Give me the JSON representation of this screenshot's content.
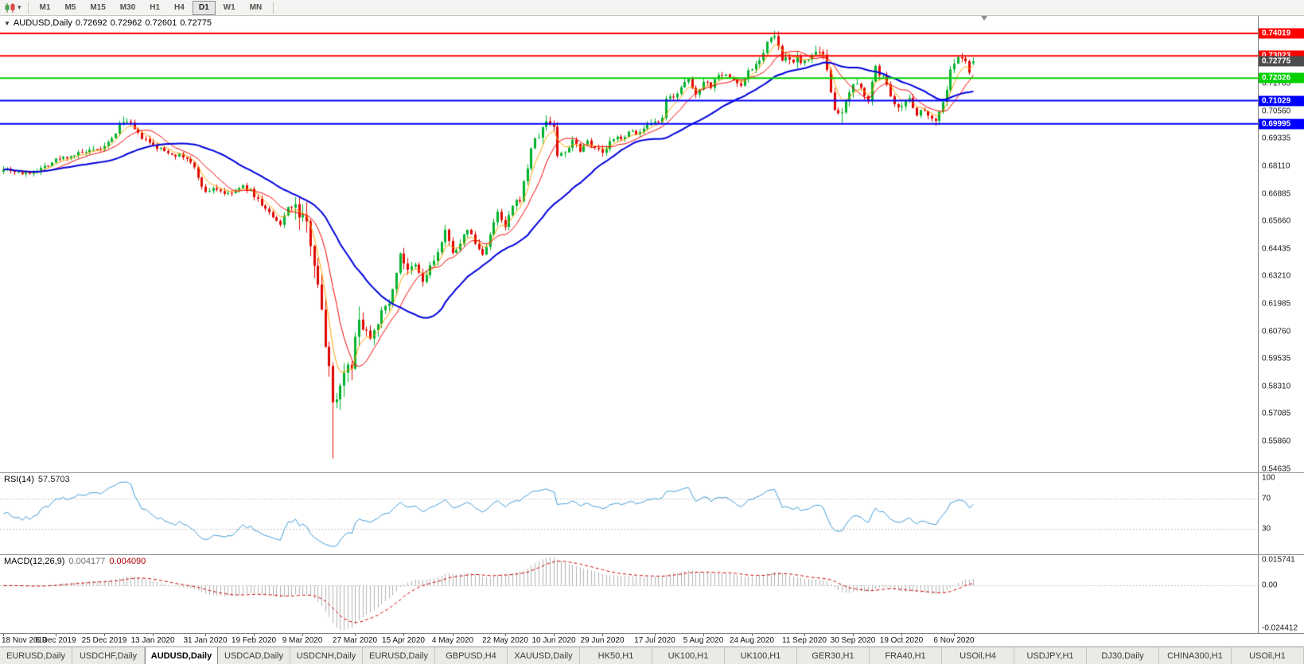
{
  "toolbar": {
    "chart_icon": "candlestick-chart-icon",
    "dropdown_glyph": "▾",
    "timeframes": [
      "M1",
      "M5",
      "M15",
      "M30",
      "H1",
      "H4",
      "D1",
      "W1",
      "MN"
    ],
    "active_timeframe": "D1"
  },
  "chart": {
    "info": {
      "dropdown_marker": "▼",
      "symbol": "AUDUSD,Daily",
      "open": "0.72692",
      "high": "0.72962",
      "low": "0.72601",
      "close": "0.72775"
    },
    "hlines": [
      {
        "price": 0.74019,
        "label": "0.74019",
        "color": "#ff0000"
      },
      {
        "price": 0.73023,
        "label": "0.73023",
        "color": "#ff0000"
      },
      {
        "price": 0.72026,
        "label": "0.72026",
        "color": "#00d000"
      },
      {
        "price": 0.71029,
        "label": "0.71029",
        "color": "#0000ff"
      },
      {
        "price": 0.69995,
        "label": "0.69995",
        "color": "#0000ff"
      }
    ],
    "current_price": {
      "label": "0.72775",
      "price": 0.72775,
      "color": "#4d4d4d"
    },
    "y_ticks": [
      "0.71785",
      "0.70560",
      "0.69335",
      "0.68110",
      "0.66885",
      "0.65660",
      "0.64435",
      "0.63210",
      "0.61985",
      "0.60760",
      "0.59535",
      "0.58310",
      "0.57085",
      "0.55860",
      "0.54635"
    ],
    "x_axis": {
      "labels": [
        "18 Nov 2019",
        "6 Dec 2019",
        "25 Dec 2019",
        "13 Jan 2020",
        "31 Jan 2020",
        "19 Feb 2020",
        "9 Mar 2020",
        "27 Mar 2020",
        "15 Apr 2020",
        "4 May 2020",
        "22 May 2020",
        "10 Jun 2020",
        "29 Jun 2020",
        "17 Jul 2020",
        "5 Aug 2020",
        "24 Aug 2020",
        "11 Sep 2020",
        "30 Sep 2020",
        "19 Oct 2020",
        "6 Nov 2020"
      ],
      "label_bars": [
        0,
        14,
        27,
        40,
        54,
        67,
        80,
        94,
        107,
        120,
        134,
        147,
        160,
        174,
        187,
        200,
        214,
        227,
        240,
        254
      ]
    }
  },
  "rsi": {
    "title": "RSI(14)",
    "value": "57.5703",
    "scale_labels": [
      "100",
      "70",
      "30"
    ],
    "scale_values": [
      100,
      70,
      30
    ],
    "levels": [
      70,
      30
    ],
    "line_color": "#3e9bd6"
  },
  "macd": {
    "title": "MACD(12,26,9)",
    "value_main": "0.004177",
    "value_signal": "0.004090",
    "scale_labels": [
      {
        "text": "0.015741",
        "value": 0.015741
      },
      {
        "text": "0.00",
        "value": 0
      },
      {
        "text": "-0.024412",
        "value": -0.024412
      }
    ]
  },
  "tabs": {
    "items": [
      {
        "label": "EURUSD,Daily",
        "active": false
      },
      {
        "label": "USDCHF,Daily",
        "active": false
      },
      {
        "label": "AUDUSD,Daily",
        "active": true
      },
      {
        "label": "USDCAD,Daily",
        "active": false
      },
      {
        "label": "USDCNH,Daily",
        "active": false
      },
      {
        "label": "EURUSD,Daily",
        "active": false
      },
      {
        "label": "GBPUSD,H4",
        "active": false
      },
      {
        "label": "XAUUSD,Daily",
        "active": false
      },
      {
        "label": "HK50,H1",
        "active": false
      },
      {
        "label": "UK100,H1",
        "active": false
      },
      {
        "label": "UK100,H1",
        "active": false
      },
      {
        "label": "GER30,H1",
        "active": false
      },
      {
        "label": "FRA40,H1",
        "active": false
      },
      {
        "label": "USOil,H4",
        "active": false
      },
      {
        "label": "USDJPY,H1",
        "active": false
      },
      {
        "label": "DJ30,Daily",
        "active": false
      },
      {
        "label": "CHINA300,H1",
        "active": false
      },
      {
        "label": "USOil,H1",
        "active": false
      }
    ]
  },
  "chart_data": {
    "type": "candlestick",
    "symbol": "AUDUSD",
    "timeframe": "Daily",
    "bars": 260,
    "right_shift_bars": 76,
    "seed": 7,
    "price_top": 0.748,
    "price_bottom": 0.5448,
    "up_color": "#00b22c",
    "down_color": "#e10600",
    "close_waypoints": [
      [
        0,
        0.6805
      ],
      [
        3,
        0.6789
      ],
      [
        6,
        0.6776
      ],
      [
        10,
        0.6801
      ],
      [
        14,
        0.6839
      ],
      [
        18,
        0.6859
      ],
      [
        22,
        0.6873
      ],
      [
        25,
        0.6881
      ],
      [
        27,
        0.6896
      ],
      [
        29,
        0.6931
      ],
      [
        31,
        0.6992
      ],
      [
        32,
        0.7016
      ],
      [
        34,
        0.6996
      ],
      [
        36,
        0.6951
      ],
      [
        38,
        0.6926
      ],
      [
        40,
        0.6901
      ],
      [
        43,
        0.6879
      ],
      [
        46,
        0.6863
      ],
      [
        49,
        0.6846
      ],
      [
        51,
        0.6801
      ],
      [
        54,
        0.6691
      ],
      [
        56,
        0.6716
      ],
      [
        58,
        0.6701
      ],
      [
        60,
        0.6683
      ],
      [
        62,
        0.6701
      ],
      [
        64,
        0.6719
      ],
      [
        66,
        0.6701
      ],
      [
        67,
        0.6681
      ],
      [
        69,
        0.6641
      ],
      [
        71,
        0.6601
      ],
      [
        73,
        0.6561
      ],
      [
        74,
        0.6546
      ],
      [
        76,
        0.6636
      ],
      [
        78,
        0.6616
      ],
      [
        80,
        0.6581
      ],
      [
        82,
        0.6491
      ],
      [
        84,
        0.6301
      ],
      [
        85,
        0.6151
      ],
      [
        86,
        0.6011
      ],
      [
        87,
        0.5951
      ],
      [
        88,
        0.5746
      ],
      [
        89,
        0.5801
      ],
      [
        90,
        0.5831
      ],
      [
        91,
        0.5906
      ],
      [
        92,
        0.5961
      ],
      [
        93,
        0.5881
      ],
      [
        94,
        0.6041
      ],
      [
        95,
        0.6156
      ],
      [
        96,
        0.6101
      ],
      [
        98,
        0.6056
      ],
      [
        100,
        0.6126
      ],
      [
        102,
        0.6181
      ],
      [
        104,
        0.6251
      ],
      [
        106,
        0.6431
      ],
      [
        108,
        0.6336
      ],
      [
        110,
        0.6366
      ],
      [
        112,
        0.6296
      ],
      [
        114,
        0.6361
      ],
      [
        116,
        0.6426
      ],
      [
        118,
        0.6511
      ],
      [
        120,
        0.6436
      ],
      [
        122,
        0.6456
      ],
      [
        124,
        0.6536
      ],
      [
        126,
        0.6466
      ],
      [
        128,
        0.6416
      ],
      [
        130,
        0.6506
      ],
      [
        132,
        0.6601
      ],
      [
        134,
        0.6536
      ],
      [
        136,
        0.6631
      ],
      [
        138,
        0.6666
      ],
      [
        140,
        0.6806
      ],
      [
        141,
        0.6896
      ],
      [
        143,
        0.6946
      ],
      [
        145,
        0.7011
      ],
      [
        147,
        0.6991
      ],
      [
        148,
        0.6856
      ],
      [
        150,
        0.6876
      ],
      [
        152,
        0.6931
      ],
      [
        154,
        0.6886
      ],
      [
        156,
        0.6926
      ],
      [
        158,
        0.6896
      ],
      [
        160,
        0.6866
      ],
      [
        162,
        0.6916
      ],
      [
        164,
        0.6936
      ],
      [
        166,
        0.6946
      ],
      [
        168,
        0.6966
      ],
      [
        170,
        0.6959
      ],
      [
        172,
        0.6986
      ],
      [
        174,
        0.7001
      ],
      [
        176,
        0.7016
      ],
      [
        177,
        0.7106
      ],
      [
        179,
        0.7126
      ],
      [
        181,
        0.7156
      ],
      [
        183,
        0.7196
      ],
      [
        185,
        0.7126
      ],
      [
        187,
        0.7196
      ],
      [
        189,
        0.7166
      ],
      [
        191,
        0.7226
      ],
      [
        193,
        0.7216
      ],
      [
        195,
        0.7196
      ],
      [
        197,
        0.7166
      ],
      [
        199,
        0.7236
      ],
      [
        201,
        0.7266
      ],
      [
        203,
        0.7316
      ],
      [
        204,
        0.7366
      ],
      [
        206,
        0.7381
      ],
      [
        207,
        0.7346
      ],
      [
        208,
        0.7276
      ],
      [
        210,
        0.7286
      ],
      [
        212,
        0.7286
      ],
      [
        213,
        0.7261
      ],
      [
        214,
        0.7286
      ],
      [
        216,
        0.7306
      ],
      [
        218,
        0.7306
      ],
      [
        219,
        0.7296
      ],
      [
        220,
        0.7226
      ],
      [
        222,
        0.7076
      ],
      [
        224,
        0.7036
      ],
      [
        226,
        0.7136
      ],
      [
        227,
        0.7166
      ],
      [
        229,
        0.7161
      ],
      [
        231,
        0.7109
      ],
      [
        233,
        0.7246
      ],
      [
        235,
        0.7206
      ],
      [
        238,
        0.7096
      ],
      [
        240,
        0.7076
      ],
      [
        242,
        0.7116
      ],
      [
        244,
        0.7046
      ],
      [
        246,
        0.7061
      ],
      [
        247,
        0.7046
      ],
      [
        249,
        0.7011
      ],
      [
        250,
        0.7056
      ],
      [
        252,
        0.7146
      ],
      [
        253,
        0.7246
      ],
      [
        254,
        0.7263
      ],
      [
        255,
        0.7293
      ],
      [
        256,
        0.7283
      ],
      [
        257,
        0.7284
      ],
      [
        258,
        0.7233
      ],
      [
        259,
        0.72775
      ]
    ],
    "volatility_zones": [
      [
        0,
        77,
        0.0021
      ],
      [
        78,
        96,
        0.008
      ],
      [
        97,
        118,
        0.0042
      ],
      [
        119,
        139,
        0.0028
      ],
      [
        140,
        151,
        0.0036
      ],
      [
        152,
        203,
        0.0024
      ],
      [
        204,
        228,
        0.0036
      ],
      [
        229,
        259,
        0.0028
      ]
    ],
    "overrides": [
      {
        "bar": 32,
        "high": 0.7032
      },
      {
        "bar": 88,
        "low": 0.551
      },
      {
        "bar": 206,
        "high": 0.7414
      },
      {
        "bar": 224,
        "low": 0.7002
      },
      {
        "bar": 249,
        "low": 0.699
      }
    ],
    "moving_averages": [
      {
        "type": "ema",
        "period": 5,
        "color": "#ffa200",
        "width": 1
      },
      {
        "type": "sma",
        "period": 10,
        "color": "#f40000",
        "width": 1
      },
      {
        "type": "sma",
        "period": 30,
        "color": "#0000dc",
        "width": 2
      }
    ],
    "rsi": {
      "period": 14,
      "current": 57.5703
    },
    "macd": {
      "fast": 12,
      "slow": 26,
      "signal": 9,
      "hist_color": "#b2b2b2",
      "signal_color": "#cc0000",
      "pos_max": 0.015741,
      "neg_min": -0.024412,
      "current_main": 0.004177,
      "current_signal": 0.00409
    }
  }
}
